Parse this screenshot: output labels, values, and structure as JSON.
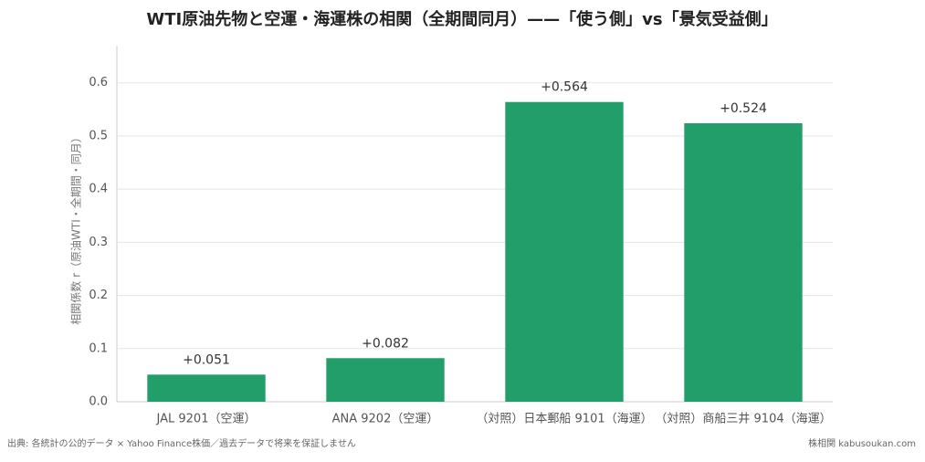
{
  "chart_data": {
    "type": "bar",
    "title": "WTI原油先物と空運・海運株の相関（全期間同月）——「使う側」vs「景気受益側」",
    "y_label": "相関係数 r（原油WTI・全期間・同月）",
    "categories": [
      "JAL 9201（空運）",
      "ANA 9202（空運）",
      "（対照）日本郵船 9101（海運）",
      "（対照）商船三井 9104（海運）"
    ],
    "values": [
      0.051,
      0.082,
      0.564,
      0.524
    ],
    "value_labels": [
      "+0.051",
      "+0.082",
      "+0.564",
      "+0.524"
    ],
    "color": "#219e6a",
    "ylim": [
      0,
      0.67
    ],
    "yticks": [
      {
        "value": 0,
        "label": "0.0"
      },
      0.1,
      0.2,
      0.3,
      0.4,
      0.5,
      0.6
    ],
    "grid": true,
    "source": "出典: 各統計の公的データ × Yahoo Finance株価／過去データで将来を保証しません",
    "watermark": "株相関 kabusoukan.com"
  }
}
